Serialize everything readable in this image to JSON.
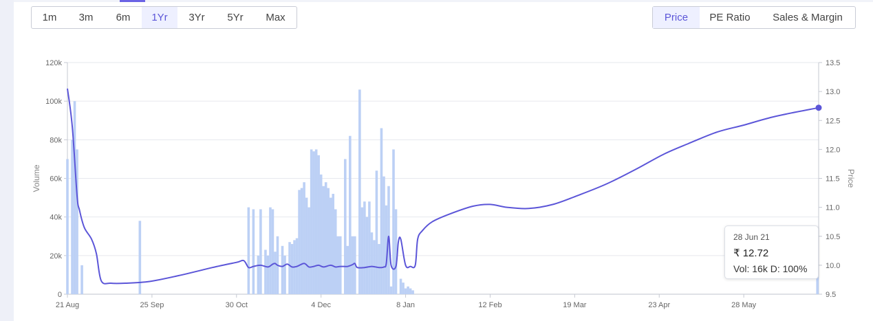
{
  "period_tabs": [
    "1m",
    "3m",
    "6m",
    "1Yr",
    "3Yr",
    "5Yr",
    "Max"
  ],
  "period_active": "1Yr",
  "metric_tabs": [
    "Price",
    "PE Ratio",
    "Sales & Margin"
  ],
  "metric_active": "Price",
  "colors": {
    "price_line": "#5b55d8",
    "volume_bar": "#bcd0f5",
    "accent": "#5b55d8"
  },
  "tooltip": {
    "date": "28 Jun 21",
    "price_label": "₹ 12.72",
    "volume_label": "Vol: 16k",
    "delivery_label": "D: 100%"
  },
  "chart_data": {
    "type": "bar+line",
    "x_range": [
      "2020-08-21",
      "2021-06-28"
    ],
    "x_ticks": [
      {
        "date": "2020-08-21",
        "label": "21 Aug"
      },
      {
        "date": "2020-09-25",
        "label": "25 Sep"
      },
      {
        "date": "2020-10-30",
        "label": "30 Oct"
      },
      {
        "date": "2020-12-04",
        "label": "4 Dec"
      },
      {
        "date": "2021-01-08",
        "label": "8 Jan"
      },
      {
        "date": "2021-02-12",
        "label": "12 Feb"
      },
      {
        "date": "2021-03-19",
        "label": "19 Mar"
      },
      {
        "date": "2021-04-23",
        "label": "23 Apr"
      },
      {
        "date": "2021-05-28",
        "label": "28 May"
      }
    ],
    "y_left": {
      "label": "Volume",
      "range": [
        0,
        120000
      ],
      "ticks": [
        0,
        20000,
        40000,
        60000,
        80000,
        100000,
        120000
      ],
      "tick_labels": [
        "0",
        "20k",
        "40k",
        "60k",
        "80k",
        "100k",
        "120k"
      ]
    },
    "y_right": {
      "label": "Price",
      "range": [
        9.5,
        13.5
      ],
      "ticks": [
        9.5,
        10.0,
        10.5,
        11.0,
        11.5,
        12.0,
        12.5,
        13.0,
        13.5
      ],
      "tick_labels": [
        "9.5",
        "10.0",
        "10.5",
        "11.0",
        "11.5",
        "12.0",
        "12.5",
        "13.0",
        "13.5"
      ]
    },
    "grid": true,
    "volume": [
      [
        "2020-08-21",
        70000
      ],
      [
        "2020-08-23",
        80000
      ],
      [
        "2020-08-24",
        100000
      ],
      [
        "2020-08-25",
        75000
      ],
      [
        "2020-08-27",
        15000
      ],
      [
        "2020-09-20",
        38000
      ],
      [
        "2020-11-04",
        45000
      ],
      [
        "2020-11-06",
        44000
      ],
      [
        "2020-11-08",
        20000
      ],
      [
        "2020-11-09",
        44000
      ],
      [
        "2020-11-11",
        23000
      ],
      [
        "2020-11-12",
        20000
      ],
      [
        "2020-11-13",
        45000
      ],
      [
        "2020-11-14",
        44000
      ],
      [
        "2020-11-15",
        22000
      ],
      [
        "2020-11-16",
        30000
      ],
      [
        "2020-11-18",
        25000
      ],
      [
        "2020-11-19",
        20000
      ],
      [
        "2020-11-21",
        27000
      ],
      [
        "2020-11-22",
        26000
      ],
      [
        "2020-11-23",
        28000
      ],
      [
        "2020-11-24",
        29000
      ],
      [
        "2020-11-25",
        54000
      ],
      [
        "2020-11-26",
        55000
      ],
      [
        "2020-11-27",
        58000
      ],
      [
        "2020-11-28",
        50000
      ],
      [
        "2020-11-29",
        45000
      ],
      [
        "2020-11-30",
        75000
      ],
      [
        "2020-12-01",
        74000
      ],
      [
        "2020-12-02",
        75000
      ],
      [
        "2020-12-03",
        72000
      ],
      [
        "2020-12-04",
        62000
      ],
      [
        "2020-12-05",
        56000
      ],
      [
        "2020-12-06",
        58000
      ],
      [
        "2020-12-07",
        55000
      ],
      [
        "2020-12-08",
        50000
      ],
      [
        "2020-12-09",
        52000
      ],
      [
        "2020-12-10",
        44000
      ],
      [
        "2020-12-11",
        30000
      ],
      [
        "2020-12-12",
        30000
      ],
      [
        "2020-12-14",
        70000
      ],
      [
        "2020-12-15",
        25000
      ],
      [
        "2020-12-16",
        82000
      ],
      [
        "2020-12-17",
        30000
      ],
      [
        "2020-12-18",
        30000
      ],
      [
        "2020-12-20",
        106000
      ],
      [
        "2020-12-21",
        45000
      ],
      [
        "2020-12-22",
        48000
      ],
      [
        "2020-12-23",
        40000
      ],
      [
        "2020-12-24",
        48000
      ],
      [
        "2020-12-25",
        32000
      ],
      [
        "2020-12-26",
        28000
      ],
      [
        "2020-12-27",
        64000
      ],
      [
        "2020-12-28",
        26000
      ],
      [
        "2020-12-29",
        86000
      ],
      [
        "2020-12-30",
        61000
      ],
      [
        "2020-12-31",
        46000
      ],
      [
        "2021-01-01",
        56000
      ],
      [
        "2021-01-02",
        4000
      ],
      [
        "2021-01-03",
        75000
      ],
      [
        "2021-01-04",
        44000
      ],
      [
        "2021-01-06",
        8000
      ],
      [
        "2021-01-07",
        6000
      ],
      [
        "2021-01-08",
        3000
      ],
      [
        "2021-01-09",
        4000
      ],
      [
        "2021-01-10",
        3000
      ],
      [
        "2021-01-11",
        2000
      ],
      [
        "2021-06-28",
        16000
      ]
    ],
    "price": [
      [
        "2020-08-21",
        13.05
      ],
      [
        "2020-08-23",
        12.4
      ],
      [
        "2020-08-25",
        11.2
      ],
      [
        "2020-08-26",
        10.95
      ],
      [
        "2020-08-28",
        10.65
      ],
      [
        "2020-08-31",
        10.45
      ],
      [
        "2020-09-02",
        10.2
      ],
      [
        "2020-09-04",
        9.73
      ],
      [
        "2020-09-08",
        9.69
      ],
      [
        "2020-09-14",
        9.69
      ],
      [
        "2020-09-24",
        9.72
      ],
      [
        "2020-10-06",
        9.82
      ],
      [
        "2020-10-20",
        9.96
      ],
      [
        "2020-10-30",
        10.05
      ],
      [
        "2020-11-02",
        10.08
      ],
      [
        "2020-11-04",
        9.96
      ],
      [
        "2020-11-06",
        9.98
      ],
      [
        "2020-11-09",
        10.0
      ],
      [
        "2020-11-12",
        9.97
      ],
      [
        "2020-11-14",
        10.02
      ],
      [
        "2020-11-15",
        10.03
      ],
      [
        "2020-11-16",
        10.0
      ],
      [
        "2020-11-18",
        9.98
      ],
      [
        "2020-11-20",
        10.02
      ],
      [
        "2020-11-22",
        9.97
      ],
      [
        "2020-11-24",
        9.98
      ],
      [
        "2020-11-27",
        10.03
      ],
      [
        "2020-11-29",
        9.97
      ],
      [
        "2020-12-01",
        9.98
      ],
      [
        "2020-12-03",
        10.0
      ],
      [
        "2020-12-05",
        9.97
      ],
      [
        "2020-12-08",
        10.0
      ],
      [
        "2020-12-10",
        9.97
      ],
      [
        "2020-12-12",
        9.98
      ],
      [
        "2020-12-15",
        9.98
      ],
      [
        "2020-12-17",
        10.01
      ],
      [
        "2020-12-18",
        10.03
      ],
      [
        "2020-12-19",
        9.96
      ],
      [
        "2020-12-22",
        9.96
      ],
      [
        "2020-12-25",
        9.98
      ],
      [
        "2020-12-28",
        9.96
      ],
      [
        "2020-12-30",
        9.97
      ],
      [
        "2020-12-31",
        10.03
      ],
      [
        "2021-01-01",
        10.5
      ],
      [
        "2021-01-02",
        10.0
      ],
      [
        "2021-01-04",
        9.98
      ],
      [
        "2021-01-05",
        10.4
      ],
      [
        "2021-01-06",
        10.45
      ],
      [
        "2021-01-08",
        10.0
      ],
      [
        "2021-01-10",
        9.98
      ],
      [
        "2021-01-12",
        10.0
      ],
      [
        "2021-01-13",
        10.45
      ],
      [
        "2021-01-15",
        10.6
      ],
      [
        "2021-01-19",
        10.75
      ],
      [
        "2021-01-26",
        10.88
      ],
      [
        "2021-02-05",
        11.02
      ],
      [
        "2021-02-12",
        11.05
      ],
      [
        "2021-02-19",
        11.0
      ],
      [
        "2021-02-28",
        10.98
      ],
      [
        "2021-03-10",
        11.05
      ],
      [
        "2021-03-20",
        11.2
      ],
      [
        "2021-04-01",
        11.4
      ],
      [
        "2021-04-13",
        11.65
      ],
      [
        "2021-04-25",
        11.92
      ],
      [
        "2021-05-05",
        12.1
      ],
      [
        "2021-05-17",
        12.3
      ],
      [
        "2021-05-28",
        12.42
      ],
      [
        "2021-06-10",
        12.57
      ],
      [
        "2021-06-28",
        12.72
      ]
    ],
    "highlight": {
      "date": "2021-06-28",
      "price": 12.72,
      "volume": 16000
    }
  }
}
